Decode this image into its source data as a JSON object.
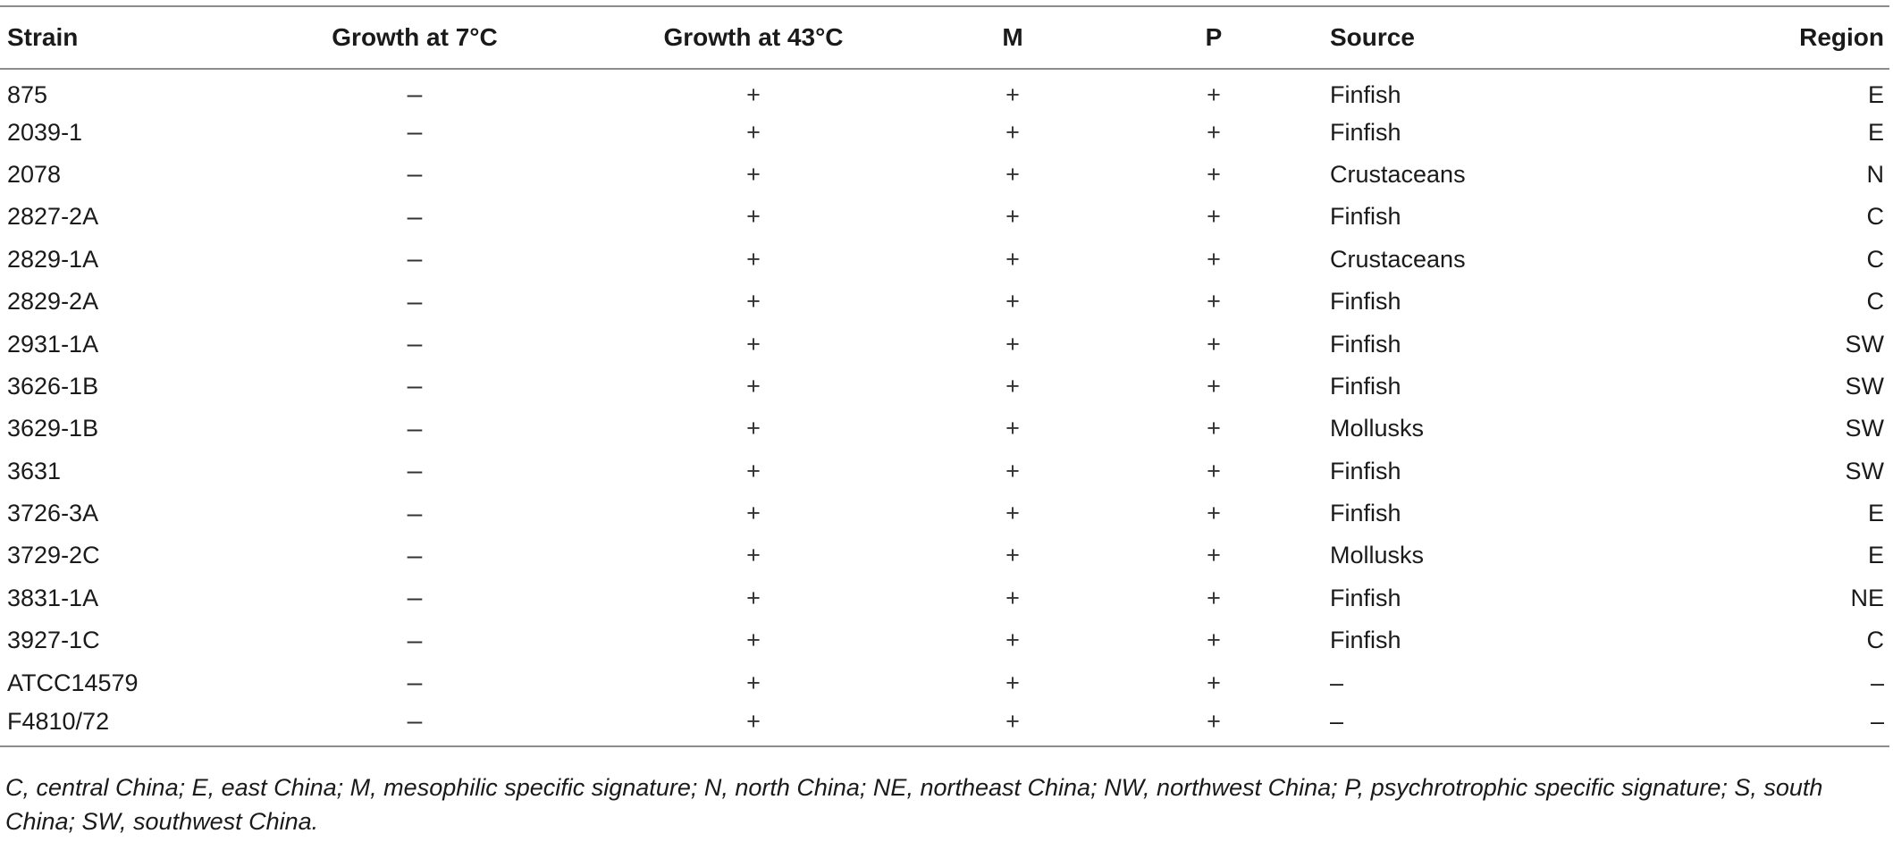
{
  "table": {
    "headers": {
      "strain": "Strain",
      "growth7": "Growth at 7°C",
      "growth43": "Growth at 43°C",
      "m": "M",
      "p": "P",
      "source": "Source",
      "region": "Region"
    },
    "rows": [
      {
        "strain": "875",
        "growth7": "–",
        "growth43": "+",
        "m": "+",
        "p": "+",
        "source": "Finfish",
        "region": "E"
      },
      {
        "strain": "2039-1",
        "growth7": "–",
        "growth43": "+",
        "m": "+",
        "p": "+",
        "source": "Finfish",
        "region": "E"
      },
      {
        "strain": "2078",
        "growth7": "–",
        "growth43": "+",
        "m": "+",
        "p": "+",
        "source": "Crustaceans",
        "region": "N"
      },
      {
        "strain": "2827-2A",
        "growth7": "–",
        "growth43": "+",
        "m": "+",
        "p": "+",
        "source": "Finfish",
        "region": "C"
      },
      {
        "strain": "2829-1A",
        "growth7": "–",
        "growth43": "+",
        "m": "+",
        "p": "+",
        "source": "Crustaceans",
        "region": "C"
      },
      {
        "strain": "2829-2A",
        "growth7": "–",
        "growth43": "+",
        "m": "+",
        "p": "+",
        "source": "Finfish",
        "region": "C"
      },
      {
        "strain": "2931-1A",
        "growth7": "–",
        "growth43": "+",
        "m": "+",
        "p": "+",
        "source": "Finfish",
        "region": "SW"
      },
      {
        "strain": "3626-1B",
        "growth7": "–",
        "growth43": "+",
        "m": "+",
        "p": "+",
        "source": "Finfish",
        "region": "SW"
      },
      {
        "strain": "3629-1B",
        "growth7": "–",
        "growth43": "+",
        "m": "+",
        "p": "+",
        "source": "Mollusks",
        "region": "SW"
      },
      {
        "strain": "3631",
        "growth7": "–",
        "growth43": "+",
        "m": "+",
        "p": "+",
        "source": "Finfish",
        "region": "SW"
      },
      {
        "strain": "3726-3A",
        "growth7": "–",
        "growth43": "+",
        "m": "+",
        "p": "+",
        "source": "Finfish",
        "region": "E"
      },
      {
        "strain": "3729-2C",
        "growth7": "–",
        "growth43": "+",
        "m": "+",
        "p": "+",
        "source": "Mollusks",
        "region": "E"
      },
      {
        "strain": "3831-1A",
        "growth7": "–",
        "growth43": "+",
        "m": "+",
        "p": "+",
        "source": "Finfish",
        "region": "NE"
      },
      {
        "strain": "3927-1C",
        "growth7": "–",
        "growth43": "+",
        "m": "+",
        "p": "+",
        "source": "Finfish",
        "region": "C"
      },
      {
        "strain": "ATCC14579",
        "growth7": "–",
        "growth43": "+",
        "m": "+",
        "p": "+",
        "source": "–",
        "region": "–"
      },
      {
        "strain": "F4810/72",
        "growth7": "–",
        "growth43": "+",
        "m": "+",
        "p": "+",
        "source": "–",
        "region": "–"
      }
    ]
  },
  "footnote": "C, central China; E, east China; M, mesophilic specific signature; N, north China; NE, northeast China; NW, northwest China; P, psychrotrophic specific signature; S, south China; SW, southwest China."
}
